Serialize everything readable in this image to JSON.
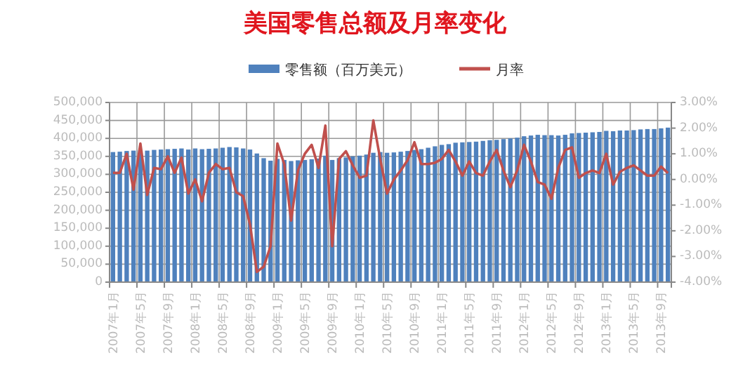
{
  "chart_data": {
    "type": "bar",
    "title": "美国零售总额及月率变化",
    "categories": [
      "2007年1月",
      null,
      null,
      null,
      "2007年5月",
      null,
      null,
      null,
      "2007年9月",
      null,
      null,
      null,
      "2008年1月",
      null,
      null,
      null,
      "2008年5月",
      null,
      null,
      null,
      "2008年9月",
      null,
      null,
      null,
      "2009年1月",
      null,
      null,
      null,
      "2009年5月",
      null,
      null,
      null,
      "2009年9月",
      null,
      null,
      null,
      "2010年1月",
      null,
      null,
      null,
      "2010年5月",
      null,
      null,
      null,
      "2010年9月",
      null,
      null,
      null,
      "2011年1月",
      null,
      null,
      null,
      "2011年5月",
      null,
      null,
      null,
      "2011年9月",
      null,
      null,
      null,
      "2012年1月",
      null,
      null,
      null,
      "2012年5月",
      null,
      null,
      null,
      "2012年9月",
      null,
      null,
      null,
      "2013年1月",
      null,
      null,
      null,
      "2013年5月",
      null,
      null,
      null,
      "2013年9月",
      null
    ],
    "series": [
      {
        "name": "零售额（百万美元）",
        "color": "#4f81bd",
        "values": [
          362000,
          363000,
          365000,
          366000,
          367000,
          366000,
          368000,
          369000,
          370000,
          371000,
          372000,
          369000,
          372000,
          370000,
          371000,
          372000,
          374000,
          376000,
          375000,
          372000,
          369000,
          358000,
          345000,
          338000,
          343000,
          340000,
          337000,
          339000,
          340000,
          342000,
          344000,
          352000,
          340000,
          345000,
          347000,
          350000,
          352000,
          355000,
          360000,
          362000,
          360000,
          361000,
          363000,
          365000,
          368000,
          370000,
          374000,
          378000,
          382000,
          384000,
          388000,
          389000,
          390000,
          391000,
          393000,
          395000,
          396000,
          398000,
          400000,
          402000,
          406000,
          408000,
          410000,
          409000,
          409000,
          408000,
          410000,
          414000,
          415000,
          416000,
          417000,
          418000,
          421000,
          420000,
          422000,
          422000,
          423000,
          425000,
          426000,
          426000,
          428000,
          430000
        ]
      },
      {
        "name": "月率",
        "type": "line",
        "axis": "y2",
        "color": "#c0504d",
        "values": [
          0.26,
          0.26,
          1.0,
          -0.4,
          1.4,
          -0.6,
          0.45,
          0.4,
          0.9,
          0.26,
          0.85,
          -0.55,
          0,
          -0.85,
          0.26,
          0.6,
          0.4,
          0.45,
          -0.5,
          -0.65,
          -1.75,
          -3.6,
          -3.4,
          -2.6,
          1.4,
          0.6,
          -1.6,
          0.35,
          1.0,
          1.35,
          0.45,
          2.1,
          -2.6,
          0.8,
          1.1,
          0.55,
          0.07,
          0.15,
          2.3,
          0.8,
          -0.55,
          0,
          0.35,
          0.75,
          1.45,
          0.6,
          0.6,
          0.65,
          0.8,
          1.15,
          0.7,
          0.15,
          0.7,
          0.25,
          0.15,
          0.7,
          1.15,
          0.35,
          -0.3,
          0.35,
          1.35,
          0.7,
          -0.1,
          -0.2,
          -0.75,
          0.45,
          1.15,
          1.25,
          0.07,
          0.25,
          0.35,
          0.25,
          1.0,
          -0.2,
          0.3,
          0.45,
          0.55,
          0.35,
          0.15,
          0.15,
          0.5,
          0.25
        ]
      }
    ],
    "ylim": [
      0,
      500000
    ],
    "yticks": [
      0,
      {
        "value": 50000,
        "label": "50,000"
      },
      {
        "value": 100000,
        "label": "100,000"
      },
      {
        "value": 150000,
        "label": "150,000"
      },
      {
        "value": 200000,
        "label": "200,000"
      },
      {
        "value": 250000,
        "label": "250,000"
      },
      {
        "value": 300000,
        "label": "300,000"
      },
      {
        "value": 350000,
        "label": "350,000"
      },
      {
        "value": 400000,
        "label": "400,000"
      },
      {
        "value": 450000,
        "label": "450,000"
      },
      {
        "value": 500000,
        "label": "500,000"
      }
    ],
    "y2lim": [
      -4,
      3
    ],
    "y2ticks": [
      {
        "value": -4,
        "label": "-4.00%"
      },
      {
        "value": -3,
        "label": "-3.00%"
      },
      {
        "value": -2,
        "label": "-2.00%"
      },
      {
        "value": -1,
        "label": "-1.00%"
      },
      {
        "value": 0,
        "label": "0.00%"
      },
      {
        "value": 1,
        "label": "1.00%"
      },
      {
        "value": 2,
        "label": "2.00%"
      },
      {
        "value": 3,
        "label": "3.00%"
      }
    ],
    "grid": true,
    "legend": "top",
    "marker": "none",
    "line_style": "solid"
  }
}
